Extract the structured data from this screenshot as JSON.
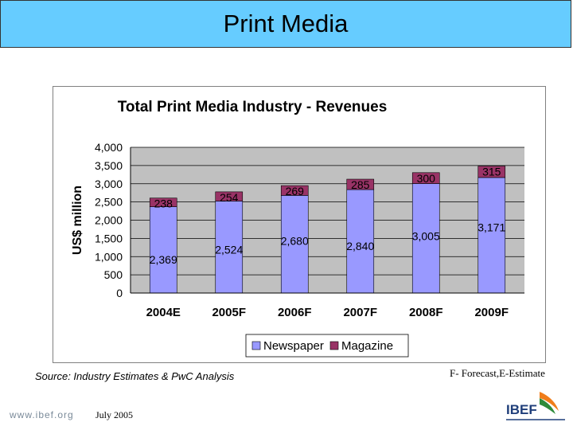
{
  "slide": {
    "title": "Print Media",
    "source": "Source: Industry Estimates & PwC Analysis",
    "note": "F- Forecast,E-Estimate",
    "footer_url": "www.ibef.org",
    "footer_date": "July 2005",
    "logo_text": "IBEF"
  },
  "colors": {
    "title_bar": "#66ccff",
    "plot_bg": "#c0c0c0",
    "newspaper": "#9999ff",
    "magazine": "#993366"
  },
  "chart_data": {
    "type": "bar",
    "stacked": true,
    "title": "Total Print Media Industry - Revenues",
    "ylabel": "US$ million",
    "xlabel": "",
    "categories": [
      "2004E",
      "2005F",
      "2006F",
      "2007F",
      "2008F",
      "2009F"
    ],
    "series": [
      {
        "name": "Newspaper",
        "values": [
          2369,
          2524,
          2680,
          2840,
          3005,
          3171
        ],
        "labels": [
          "2,369",
          "2,524",
          "2,680",
          "2,840",
          "3,005",
          "3,171"
        ]
      },
      {
        "name": "Magazine",
        "values": [
          238,
          254,
          269,
          285,
          300,
          315
        ],
        "labels": [
          "238",
          "254",
          "269",
          "285",
          "300",
          "315"
        ]
      }
    ],
    "ylim": [
      0,
      4000
    ],
    "yticks": [
      0,
      500,
      1000,
      1500,
      2000,
      2500,
      3000,
      3500,
      4000
    ],
    "ytick_labels": [
      "0",
      "500",
      "1,000",
      "1,500",
      "2,000",
      "2,500",
      "3,000",
      "3,500",
      "4,000"
    ],
    "grid": true,
    "legend": "bottom"
  }
}
